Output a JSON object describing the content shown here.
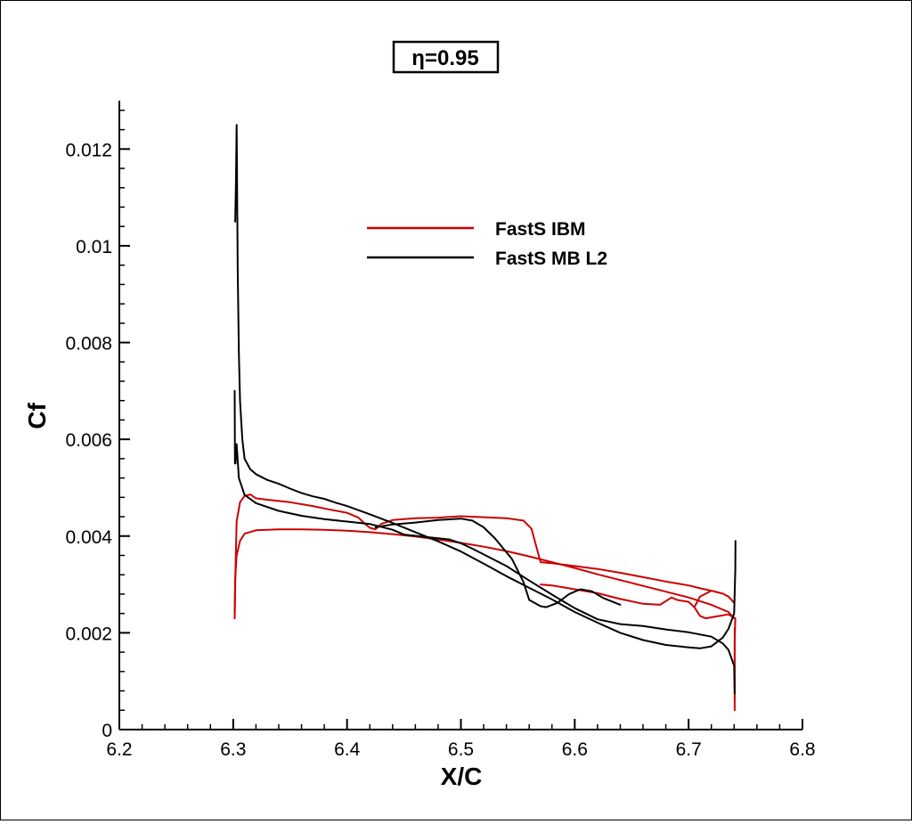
{
  "chart_data": {
    "type": "line",
    "title": "η=0.95",
    "xlabel": "X/C",
    "ylabel": "Cf",
    "xlim": [
      6.2,
      6.8
    ],
    "ylim": [
      0,
      0.013
    ],
    "x_ticks": [
      6.2,
      6.3,
      6.4,
      6.5,
      6.6,
      6.7,
      6.8
    ],
    "x_tick_labels": [
      "6.2",
      "6.3",
      "6.4",
      "6.5",
      "6.6",
      "6.7",
      "6.8"
    ],
    "y_ticks": [
      0,
      0.002,
      0.004,
      0.006,
      0.008,
      0.01,
      0.012
    ],
    "y_tick_labels": [
      "0",
      "0.002",
      "0.004",
      "0.006",
      "0.008",
      "0.01",
      "0.012"
    ],
    "grid": false,
    "legend_position": "upper-center",
    "series": [
      {
        "name": "FastS IBM",
        "color": "#cc0000",
        "segments": [
          [
            [
              6.3013,
              0.0023
            ],
            [
              6.3017,
              0.0031
            ],
            [
              6.303,
              0.0036
            ],
            [
              6.306,
              0.0039
            ],
            [
              6.31,
              0.00405
            ],
            [
              6.32,
              0.00412
            ],
            [
              6.34,
              0.00414
            ],
            [
              6.36,
              0.00414
            ],
            [
              6.38,
              0.00413
            ],
            [
              6.4,
              0.00411
            ],
            [
              6.42,
              0.00408
            ],
            [
              6.44,
              0.00404
            ],
            [
              6.46,
              0.00399
            ],
            [
              6.48,
              0.00393
            ],
            [
              6.5,
              0.00386
            ],
            [
              6.52,
              0.00378
            ],
            [
              6.54,
              0.00369
            ],
            [
              6.56,
              0.00358
            ],
            [
              6.58,
              0.00346
            ],
            [
              6.6,
              0.00334
            ],
            [
              6.62,
              0.00321
            ],
            [
              6.64,
              0.00309
            ],
            [
              6.66,
              0.00297
            ],
            [
              6.68,
              0.00285
            ],
            [
              6.7,
              0.00273
            ],
            [
              6.72,
              0.00258
            ],
            [
              6.735,
              0.00243
            ],
            [
              6.74,
              0.0023
            ]
          ],
          [
            [
              6.3013,
              0.0023
            ],
            [
              6.302,
              0.0033
            ],
            [
              6.303,
              0.0043
            ],
            [
              6.306,
              0.0047
            ],
            [
              6.31,
              0.00483
            ],
            [
              6.315,
              0.00486
            ],
            [
              6.32,
              0.00478
            ],
            [
              6.33,
              0.00475
            ],
            [
              6.35,
              0.0047
            ],
            [
              6.37,
              0.00462
            ],
            [
              6.38,
              0.00457
            ],
            [
              6.4,
              0.00448
            ],
            [
              6.41,
              0.00438
            ],
            [
              6.415,
              0.00427
            ],
            [
              6.42,
              0.00417
            ],
            [
              6.425,
              0.00414
            ],
            [
              6.43,
              0.00425
            ],
            [
              6.44,
              0.00433
            ],
            [
              6.46,
              0.00437
            ],
            [
              6.48,
              0.00438
            ],
            [
              6.5,
              0.00441
            ],
            [
              6.52,
              0.00439
            ],
            [
              6.54,
              0.00437
            ],
            [
              6.555,
              0.00432
            ],
            [
              6.562,
              0.00415
            ],
            [
              6.566,
              0.0038
            ],
            [
              6.57,
              0.00346
            ],
            [
              6.58,
              0.00344
            ],
            [
              6.6,
              0.00338
            ],
            [
              6.62,
              0.00332
            ],
            [
              6.64,
              0.00324
            ],
            [
              6.66,
              0.00315
            ],
            [
              6.68,
              0.00306
            ],
            [
              6.7,
              0.00298
            ],
            [
              6.71,
              0.00292
            ],
            [
              6.72,
              0.00287
            ],
            [
              6.73,
              0.00281
            ],
            [
              6.735,
              0.00275
            ],
            [
              6.74,
              0.00262
            ]
          ],
          [
            [
              6.72,
              0.00287
            ],
            [
              6.71,
              0.00275
            ],
            [
              6.705,
              0.00253
            ],
            [
              6.7,
              0.00264
            ],
            [
              6.69,
              0.00268
            ],
            [
              6.685,
              0.00273
            ],
            [
              6.675,
              0.00258
            ],
            [
              6.66,
              0.0026
            ],
            [
              6.64,
              0.0027
            ],
            [
              6.62,
              0.00282
            ],
            [
              6.6,
              0.0029
            ],
            [
              6.58,
              0.00298
            ],
            [
              6.57,
              0.003
            ]
          ],
          [
            [
              6.7405,
              0.0006
            ],
            [
              6.7405,
              0.0018
            ],
            [
              6.741,
              0.0023
            ],
            [
              6.735,
              0.00238
            ],
            [
              6.725,
              0.00234
            ],
            [
              6.715,
              0.0023
            ],
            [
              6.71,
              0.00235
            ],
            [
              6.705,
              0.00253
            ]
          ],
          [
            [
              6.7405,
              0.0004
            ],
            [
              6.7405,
              0.0021
            ]
          ]
        ]
      },
      {
        "name": "FastS MB L2",
        "color": "#000000",
        "segments": [
          [
            [
              6.3018,
              0.0105
            ],
            [
              6.3025,
              0.0114
            ],
            [
              6.303,
              0.0125
            ],
            [
              6.304,
              0.0095
            ],
            [
              6.305,
              0.0078
            ],
            [
              6.306,
              0.0068
            ],
            [
              6.308,
              0.006
            ],
            [
              6.31,
              0.0056
            ],
            [
              6.315,
              0.00538
            ],
            [
              6.32,
              0.00528
            ],
            [
              6.33,
              0.00516
            ],
            [
              6.34,
              0.00508
            ],
            [
              6.35,
              0.00498
            ],
            [
              6.36,
              0.00489
            ],
            [
              6.37,
              0.00482
            ],
            [
              6.38,
              0.00477
            ],
            [
              6.39,
              0.00469
            ],
            [
              6.4,
              0.00462
            ],
            [
              6.42,
              0.00445
            ],
            [
              6.44,
              0.00427
            ],
            [
              6.46,
              0.00408
            ],
            [
              6.48,
              0.00389
            ],
            [
              6.5,
              0.00368
            ],
            [
              6.52,
              0.00343
            ],
            [
              6.54,
              0.00317
            ],
            [
              6.56,
              0.00293
            ],
            [
              6.58,
              0.00269
            ],
            [
              6.6,
              0.00243
            ],
            [
              6.62,
              0.00221
            ],
            [
              6.64,
              0.002
            ],
            [
              6.66,
              0.00185
            ],
            [
              6.68,
              0.00175
            ],
            [
              6.7,
              0.0017
            ],
            [
              6.71,
              0.00168
            ],
            [
              6.72,
              0.00172
            ],
            [
              6.73,
              0.0019
            ],
            [
              6.735,
              0.00208
            ],
            [
              6.74,
              0.0024
            ],
            [
              6.741,
              0.0033
            ],
            [
              6.7412,
              0.0039
            ]
          ],
          [
            [
              6.3013,
              0.007
            ],
            [
              6.3015,
              0.0055
            ],
            [
              6.302,
              0.0055
            ],
            [
              6.303,
              0.0059
            ],
            [
              6.305,
              0.0052
            ],
            [
              6.31,
              0.00485
            ],
            [
              6.32,
              0.00468
            ],
            [
              6.34,
              0.00452
            ],
            [
              6.36,
              0.00442
            ],
            [
              6.38,
              0.00435
            ],
            [
              6.4,
              0.0043
            ],
            [
              6.42,
              0.00425
            ],
            [
              6.44,
              0.00413
            ],
            [
              6.45,
              0.00403
            ],
            [
              6.47,
              0.00398
            ],
            [
              6.49,
              0.00393
            ],
            [
              6.5,
              0.00385
            ],
            [
              6.51,
              0.00374
            ],
            [
              6.52,
              0.00362
            ],
            [
              6.54,
              0.00338
            ],
            [
              6.56,
              0.00308
            ],
            [
              6.58,
              0.00279
            ],
            [
              6.6,
              0.00251
            ],
            [
              6.62,
              0.00228
            ],
            [
              6.64,
              0.00218
            ],
            [
              6.66,
              0.00214
            ],
            [
              6.68,
              0.00207
            ],
            [
              6.7,
              0.00201
            ],
            [
              6.72,
              0.00192
            ],
            [
              6.73,
              0.00178
            ],
            [
              6.735,
              0.00165
            ],
            [
              6.74,
              0.00132
            ],
            [
              6.7405,
              0.00075
            ]
          ],
          [
            [
              6.425,
              0.00418
            ],
            [
              6.44,
              0.00424
            ],
            [
              6.46,
              0.00428
            ],
            [
              6.48,
              0.00433
            ],
            [
              6.5,
              0.00436
            ],
            [
              6.51,
              0.00432
            ],
            [
              6.52,
              0.00418
            ],
            [
              6.53,
              0.00395
            ],
            [
              6.545,
              0.00352
            ],
            [
              6.555,
              0.00305
            ],
            [
              6.56,
              0.00268
            ],
            [
              6.57,
              0.00255
            ],
            [
              6.575,
              0.00253
            ],
            [
              6.585,
              0.00262
            ],
            [
              6.595,
              0.0028
            ],
            [
              6.605,
              0.0029
            ],
            [
              6.615,
              0.00286
            ],
            [
              6.625,
              0.00272
            ],
            [
              6.64,
              0.00258
            ]
          ]
        ]
      }
    ]
  }
}
